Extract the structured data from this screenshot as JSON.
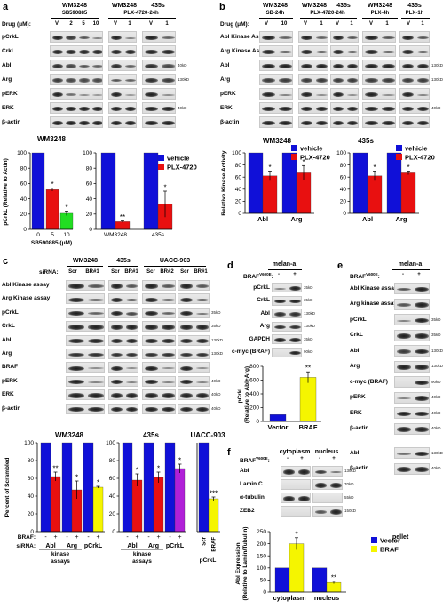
{
  "panels": {
    "a": {
      "letter": "a",
      "groups": [
        {
          "cell": "WM3248",
          "treat": "SB590885"
        },
        {
          "cell": "WM3248",
          "treat": "PLX-4720-24h"
        },
        {
          "cell": "435s",
          "treat": ""
        }
      ],
      "drug_label": "Drug (μM):",
      "lanes": [
        "V",
        "2",
        "5",
        "10",
        "V",
        "1",
        "V",
        "1"
      ],
      "rows": [
        "pCrkL",
        "CrkL",
        "Abl",
        "Arg",
        "pERK",
        "ERK",
        "β-actin"
      ],
      "kd": [
        "40kD",
        "130kD",
        "40kD"
      ]
    },
    "b": {
      "letter": "b",
      "groups": [
        {
          "cell": "WM3248",
          "treat": "SB-24h"
        },
        {
          "cell": "WM3248",
          "treat": "PLX-4720-24h"
        },
        {
          "cell": "435s",
          "treat": ""
        },
        {
          "cell": "WM3248",
          "treat": "PLX-4h"
        },
        {
          "cell": "435s",
          "treat": "PLX-1h"
        }
      ],
      "drug_label": "Drug (μM):",
      "lanes": [
        "V",
        "10",
        "V",
        "1",
        "V",
        "1",
        "V",
        "1",
        "V",
        "1"
      ],
      "rows": [
        "Abl Kinase Assay",
        "Arg Kinase Assay",
        "Abl",
        "Arg",
        "pERK",
        "ERK",
        "β-actin"
      ],
      "kd": [
        "130kD",
        "130kD",
        "40kD"
      ]
    },
    "c": {
      "letter": "c",
      "groups": [
        "WM3248",
        "435s",
        "UACC-903"
      ],
      "sirna_label": "siRNA:",
      "lanes": [
        "Scr",
        "BR#1",
        "Scr",
        "BR#1",
        "Scr",
        "BR#2",
        "Scr",
        "BR#1"
      ],
      "rows": [
        "Abl Kinase assay",
        "Arg Kinase assay",
        "pCrkL",
        "CrkL",
        "Abl",
        "Arg",
        "BRAF",
        "pERK",
        "ERK",
        "β-actin"
      ],
      "kd": [
        "35kD",
        "35kD",
        "130kD",
        "130kD",
        "40kD",
        "40kD",
        "40kD"
      ]
    },
    "d": {
      "letter": "d",
      "cell": "melan-a",
      "braf_label": "BRAF",
      "braf_sup": "V600E",
      "lanes": [
        "-",
        "+"
      ],
      "rows": [
        "pCrkL",
        "CrkL",
        "Abl",
        "Arg",
        "GAPDH",
        "c-myc (BRAF)"
      ],
      "kd": [
        "35kD",
        "35kD",
        "130kD",
        "130kD",
        "35kD",
        "90kD"
      ]
    },
    "e": {
      "letter": "e",
      "cell": "melan-a",
      "braf_label": "BRAF",
      "braf_sup": "V600E",
      "lanes": [
        "-",
        "+"
      ],
      "rows": [
        "Abl Kinase assay",
        "Arg kinase assay",
        "pCrkL",
        "CrkL",
        "Abl",
        "Arg",
        "c-myc (BRAF)",
        "pERK",
        "ERK",
        "β-actin",
        "Abl",
        "β-actin"
      ],
      "kd": [
        "35kD",
        "35kD",
        "130kD",
        "130kD",
        "90kD",
        "40kD",
        "40kD",
        "40kD",
        "130kD",
        "40kD"
      ],
      "pellet": "pellet"
    },
    "f": {
      "letter": "f",
      "fractions": [
        "cytoplasm",
        "nucleus"
      ],
      "braf_label": "BRAF",
      "braf_sup": "V600E",
      "lanes": [
        "-",
        "+",
        "-",
        "+"
      ],
      "rows": [
        "Abl",
        "Lamin C",
        "α-tubulin",
        "ZEB2"
      ],
      "kd": [
        "130kD",
        "70kD",
        "55kD",
        "150kD"
      ]
    }
  },
  "colors": {
    "blue": "#1010d8",
    "red": "#e81010",
    "green": "#22dd22",
    "yellow": "#f5f500",
    "purple": "#b020d8"
  },
  "chart_data": [
    {
      "id": "a1",
      "type": "bar",
      "title": "WM3248",
      "ylabel": "pCrkL (Relative to Actin)",
      "xlabel": "SB590885 (μM)",
      "categories": [
        "0",
        "5",
        "10"
      ],
      "values": [
        100,
        52,
        21
      ],
      "errors": [
        0,
        2,
        3
      ],
      "colors": [
        "#1010d8",
        "#e81010",
        "#22dd22"
      ],
      "stars": [
        "",
        "*",
        "*"
      ],
      "ylim": [
        0,
        100
      ],
      "yticks": [
        0,
        20,
        40,
        60,
        80,
        100
      ]
    },
    {
      "id": "a2",
      "type": "bar",
      "categories": [
        "WM3248",
        "435s"
      ],
      "series": [
        {
          "name": "vehicle",
          "values": [
            100,
            100
          ],
          "errors": [
            0,
            0
          ],
          "color": "#1010d8"
        },
        {
          "name": "PLX-4720",
          "values": [
            10,
            33
          ],
          "errors": [
            1,
            17
          ],
          "color": "#e81010"
        }
      ],
      "stars": [
        "**",
        "*"
      ],
      "ylim": [
        0,
        100
      ],
      "yticks": [
        0,
        20,
        40,
        60,
        80,
        100
      ]
    },
    {
      "id": "b1",
      "type": "bar",
      "title": "WM3248",
      "ylabel": "Relative Kinase Activity",
      "categories": [
        "Abl",
        "Arg"
      ],
      "series": [
        {
          "name": "vehicle",
          "values": [
            100,
            100
          ],
          "errors": [
            0,
            0
          ],
          "color": "#1010d8"
        },
        {
          "name": "PLX-4720",
          "values": [
            62,
            67
          ],
          "errors": [
            8,
            12
          ],
          "color": "#e81010"
        }
      ],
      "stars": [
        "*",
        "*"
      ],
      "ylim": [
        0,
        100
      ],
      "yticks": [
        0,
        20,
        40,
        60,
        80,
        100
      ]
    },
    {
      "id": "b2",
      "type": "bar",
      "title": "435s",
      "categories": [
        "Abl",
        "Arg"
      ],
      "series": [
        {
          "name": "vehicle",
          "values": [
            100,
            100
          ],
          "errors": [
            0,
            0
          ],
          "color": "#1010d8"
        },
        {
          "name": "PLX-4720",
          "values": [
            62,
            67
          ],
          "errors": [
            8,
            3
          ],
          "color": "#e81010"
        }
      ],
      "stars": [
        "*",
        "*"
      ],
      "ylim": [
        0,
        100
      ],
      "yticks": [
        0,
        20,
        40,
        60,
        80,
        100
      ]
    },
    {
      "id": "c1",
      "type": "bar",
      "title": "WM3248",
      "ylabel": "Percent of Scrambled",
      "categories": [
        "Abl",
        "Arg",
        "pCrkL"
      ],
      "group_label": "kinase assays",
      "siRNA_label": "siRNA:",
      "braf_label": "BRAF:",
      "series": [
        {
          "values": [
            100,
            100,
            100
          ],
          "color": "#1010d8",
          "signs": [
            "-",
            "-",
            "-"
          ]
        },
        {
          "values": [
            62,
            47,
            50
          ],
          "errors": [
            5,
            10,
            1
          ],
          "colors": [
            "#e81010",
            "#e81010",
            "#f5f500"
          ],
          "signs": [
            "+",
            "+",
            "+"
          ]
        }
      ],
      "stars": [
        "**",
        "*",
        "*"
      ],
      "ylim": [
        0,
        100
      ],
      "yticks": [
        0,
        20,
        40,
        60,
        80,
        100
      ]
    },
    {
      "id": "c2",
      "type": "bar",
      "title": "435s",
      "categories": [
        "Abl",
        "Arg",
        "pCrkL"
      ],
      "group_label": "kinase assays",
      "series": [
        {
          "values": [
            100,
            100,
            100
          ],
          "color": "#1010d8",
          "signs": [
            "-",
            "-",
            "-"
          ]
        },
        {
          "values": [
            58,
            61,
            71
          ],
          "errors": [
            7,
            6,
            5
          ],
          "colors": [
            "#e81010",
            "#e81010",
            "#b020d8"
          ],
          "signs": [
            "+",
            "+",
            "+"
          ]
        }
      ],
      "stars": [
        "*",
        "*",
        "*"
      ],
      "ylim": [
        0,
        100
      ],
      "yticks": [
        0,
        20,
        40,
        60,
        80,
        100
      ]
    },
    {
      "id": "c3",
      "type": "bar",
      "title": "UACC-903",
      "categories": [
        "Scr",
        "BRAF"
      ],
      "xlabel": "pCrkL",
      "values": [
        100,
        37
      ],
      "errors": [
        0,
        2
      ],
      "colors": [
        "#1010d8",
        "#f5f500"
      ],
      "stars": [
        "",
        "***"
      ],
      "ylim": [
        0,
        100
      ]
    },
    {
      "id": "d",
      "type": "bar",
      "ylabel": "pCrkL (Relative to Abl+Arg)",
      "categories": [
        "Vector",
        "BRAF"
      ],
      "values": [
        100,
        640
      ],
      "errors": [
        0,
        80
      ],
      "colors": [
        "#1010d8",
        "#f5f500"
      ],
      "stars": [
        "",
        "**"
      ],
      "ylim": [
        0,
        800
      ],
      "yticks": [
        0,
        200,
        400,
        600,
        800
      ]
    },
    {
      "id": "f",
      "type": "bar",
      "ylabel": "Abl Expression (Relative to Lamin/Tubulin)",
      "categories": [
        "cytoplasm",
        "nucleus"
      ],
      "series": [
        {
          "name": "Vector",
          "values": [
            100,
            100
          ],
          "errors": [
            0,
            0
          ],
          "color": "#1010d8"
        },
        {
          "name": "BRAF",
          "values": [
            200,
            40
          ],
          "errors": [
            25,
            5
          ],
          "color": "#f5f500"
        }
      ],
      "stars": [
        "*",
        "**"
      ],
      "ylim": [
        0,
        250
      ],
      "yticks": [
        0,
        50,
        100,
        150,
        200,
        250
      ]
    }
  ]
}
